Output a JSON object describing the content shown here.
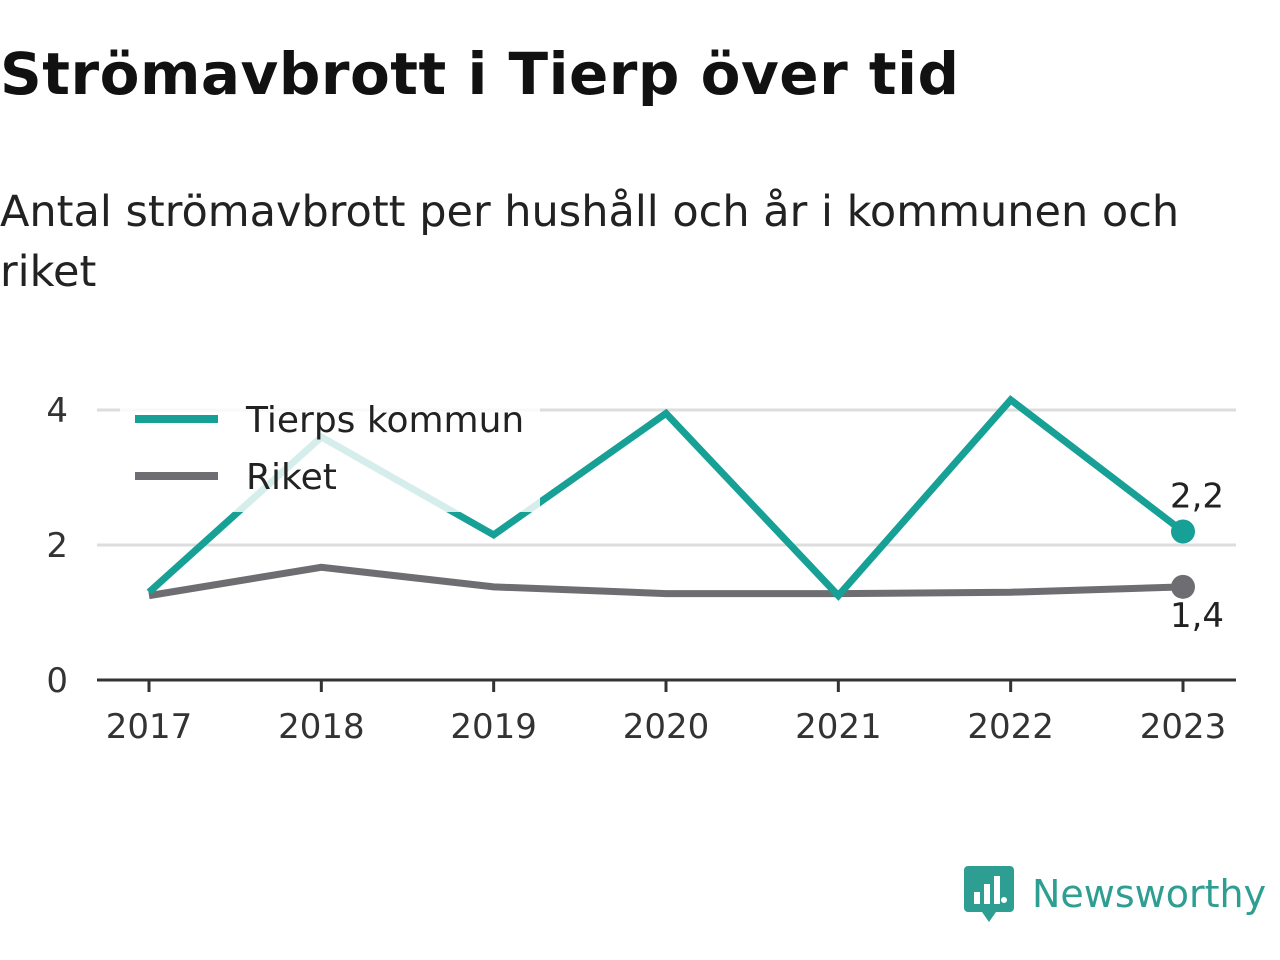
{
  "title": "Strömavbrott i Tierp över tid",
  "subtitle": "Antal strömavbrott per hushåll och år i kommunen och riket",
  "brand": {
    "name": "Newsworthy",
    "icon": "newsworthy-logo-icon",
    "color": "#2e9e93"
  },
  "chart_data": {
    "type": "line",
    "title": "Strömavbrott i Tierp över tid",
    "subtitle": "Antal strömavbrott per hushåll och år i kommunen och riket",
    "xlabel": "",
    "ylabel": "",
    "x": [
      "2017",
      "2018",
      "2019",
      "2020",
      "2021",
      "2022",
      "2023"
    ],
    "ylim": [
      0,
      4.4
    ],
    "yticks": [
      0,
      2,
      4
    ],
    "ytick_labels": [
      "0",
      "2",
      "4"
    ],
    "grid": true,
    "legend_position": "top-left",
    "series": [
      {
        "name": "Tierps kommun",
        "color": "#16a096",
        "values": [
          1.3,
          3.6,
          2.15,
          3.95,
          1.25,
          4.15,
          2.2
        ],
        "end_label": "2,2"
      },
      {
        "name": "Riket",
        "color": "#6e6e72",
        "values": [
          1.25,
          1.67,
          1.38,
          1.28,
          1.28,
          1.3,
          1.38
        ],
        "end_label": "1,4"
      }
    ]
  }
}
